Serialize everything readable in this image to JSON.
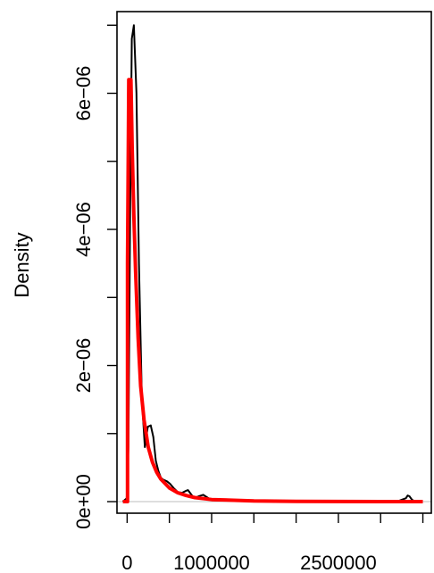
{
  "chart_data": {
    "type": "line",
    "title": "",
    "xlabel": "",
    "ylabel": "Density",
    "xlim": [
      -120000,
      3600000
    ],
    "ylim": [
      -1.7e-07,
      7.2e-06
    ],
    "x_ticks": [
      0,
      500000,
      1000000,
      1500000,
      2000000,
      2500000,
      3000000,
      3500000
    ],
    "x_tick_labels": [
      "0",
      "",
      "1000000",
      "",
      "",
      "2500000",
      "",
      ""
    ],
    "y_ticks": [
      0,
      1e-06,
      2e-06,
      3e-06,
      4e-06,
      5e-06,
      6e-06,
      7e-06
    ],
    "y_tick_labels": [
      "0e+00",
      "",
      "2e−06",
      "",
      "4e−06",
      "",
      "6e−06",
      ""
    ],
    "grid": false,
    "baseline": 0,
    "series": [
      {
        "color": "#000000",
        "x": [
          -50000,
          -5000,
          15000,
          35000,
          55000,
          80000,
          110000,
          140000,
          175000,
          210000,
          245000,
          280000,
          310000,
          340000,
          370000,
          400000,
          430000,
          470000,
          510000,
          550000,
          600000,
          650000,
          700000,
          720000,
          750000,
          780000,
          810000,
          850000,
          900000,
          1000000,
          1500000,
          2000000,
          2500000,
          3200000,
          3300000,
          3320000,
          3340000,
          3370000,
          3400000,
          3500000
        ],
        "y": [
          0,
          5e-08,
          8e-07,
          4.2e-06,
          6.8e-06,
          7e-06,
          6e-06,
          3.5e-06,
          1.5e-06,
          8e-07,
          1.1e-06,
          1.12e-06,
          9.5e-07,
          6e-07,
          4.5e-07,
          3.5e-07,
          3.2e-07,
          3e-07,
          2.6e-07,
          2e-07,
          1.4e-07,
          1.3e-07,
          1.6e-07,
          1.7e-07,
          1.2e-07,
          7e-08,
          6e-08,
          8e-08,
          1e-07,
          2e-08,
          5e-09,
          0,
          0,
          5e-09,
          5e-08,
          9e-08,
          8e-08,
          3e-08,
          5e-09,
          0
        ]
      },
      {
        "color": "#ff0000",
        "x": [
          -50000,
          5000,
          5001,
          20000,
          45000,
          60000,
          80000,
          100000,
          130000,
          160000,
          200000,
          250000,
          300000,
          350000,
          400000,
          500000,
          600000,
          700000,
          800000,
          1000000,
          1500000,
          2000000,
          2500000,
          3000000,
          3500000
        ],
        "y": [
          0,
          0,
          3.5e-06,
          6.2e-06,
          6.2e-06,
          5.2e-06,
          4.2e-06,
          3.4e-06,
          2.4e-06,
          1.7e-06,
          1.2e-06,
          8e-07,
          5.8e-07,
          4.3e-07,
          3.3e-07,
          2e-07,
          1.3e-07,
          9e-08,
          6e-08,
          3e-08,
          1e-08,
          5e-09,
          2e-09,
          1e-09,
          0
        ]
      }
    ]
  }
}
